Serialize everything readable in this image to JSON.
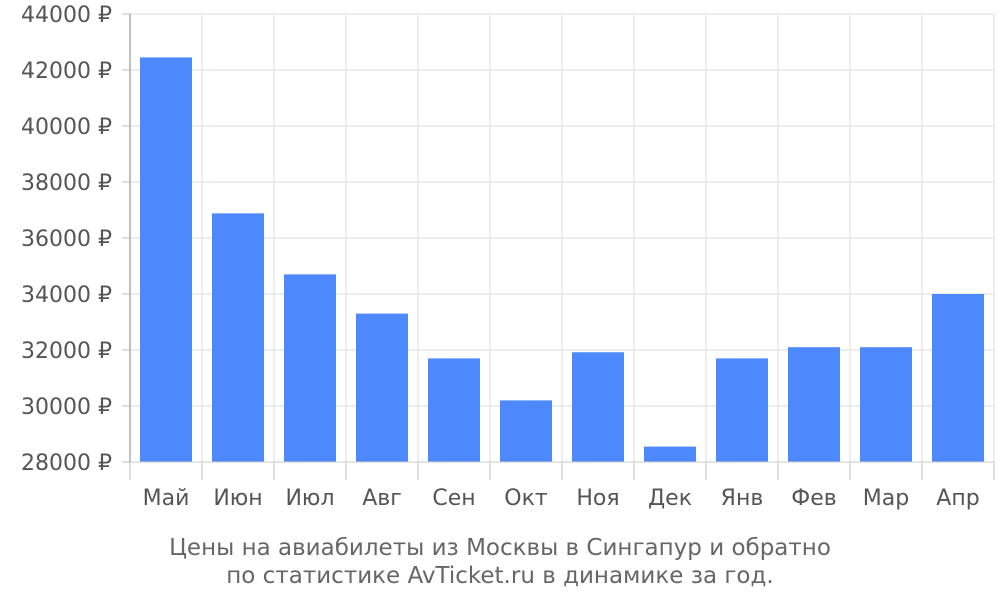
{
  "chart_data": {
    "type": "bar",
    "categories": [
      "Май",
      "Июн",
      "Июл",
      "Авг",
      "Сен",
      "Окт",
      "Ноя",
      "Дек",
      "Янв",
      "Фев",
      "Мар",
      "Апр"
    ],
    "values": [
      42450,
      36880,
      34700,
      33300,
      31700,
      30200,
      31920,
      28550,
      31700,
      32100,
      32100,
      34000
    ],
    "y_ticks": [
      28000,
      30000,
      32000,
      34000,
      36000,
      38000,
      40000,
      42000,
      44000
    ],
    "y_tick_suffix": " ₽",
    "ylim": [
      28000,
      44000
    ],
    "grid": true,
    "bar_color": "#4d88fc",
    "caption": [
      "Цены на авиабилеты из Москвы в Сингапур и обратно",
      "по статистике AvTicket.ru в динамике за год."
    ]
  }
}
